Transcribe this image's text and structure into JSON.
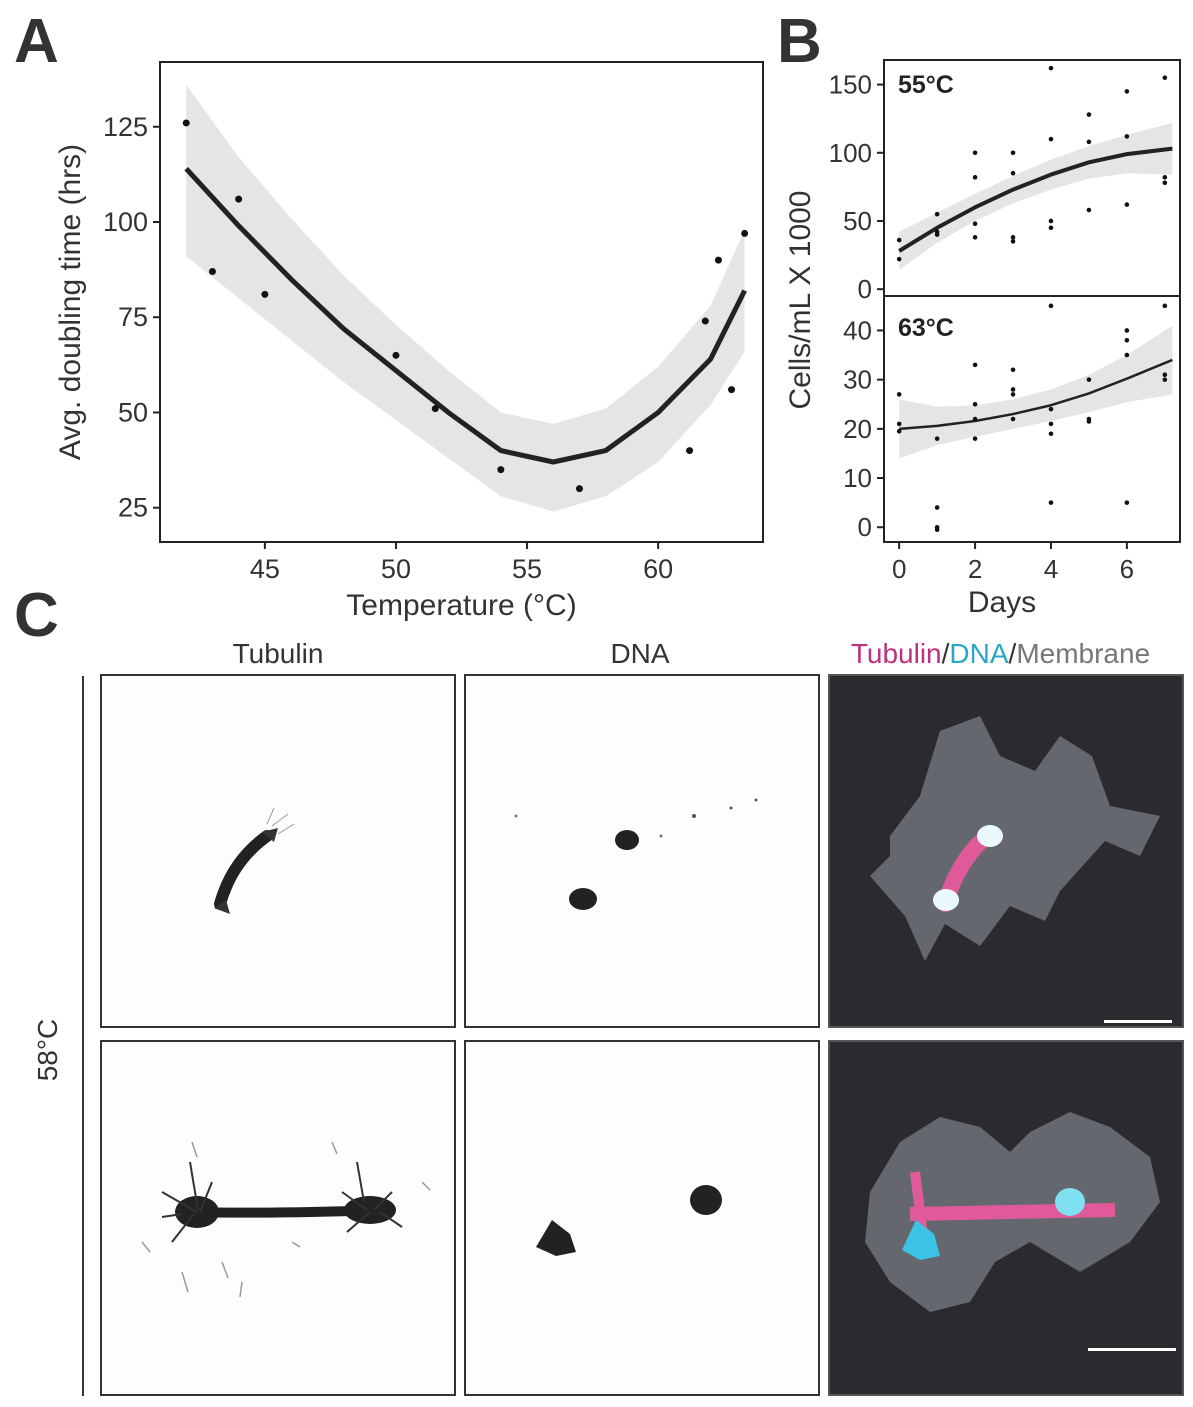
{
  "panels": {
    "a": "A",
    "b": "B",
    "c": "C"
  },
  "chart_data": [
    {
      "id": "A",
      "type": "scatter",
      "xlabel": "Temperature (°C)",
      "ylabel": "Avg. doubling time (hrs)",
      "xlim": [
        41,
        64
      ],
      "ylim": [
        16,
        142
      ],
      "xticks": [
        45,
        50,
        55,
        60
      ],
      "yticks": [
        25,
        50,
        75,
        100,
        125
      ],
      "points": [
        {
          "x": 42,
          "y": 126
        },
        {
          "x": 43,
          "y": 87
        },
        {
          "x": 44,
          "y": 106
        },
        {
          "x": 45,
          "y": 81
        },
        {
          "x": 50,
          "y": 65
        },
        {
          "x": 51.5,
          "y": 51
        },
        {
          "x": 54,
          "y": 35
        },
        {
          "x": 57,
          "y": 30
        },
        {
          "x": 61.2,
          "y": 40
        },
        {
          "x": 61.8,
          "y": 74
        },
        {
          "x": 62.3,
          "y": 90
        },
        {
          "x": 62.8,
          "y": 56
        },
        {
          "x": 63.3,
          "y": 97
        }
      ],
      "fit": [
        {
          "x": 42,
          "y": 114
        },
        {
          "x": 44,
          "y": 99
        },
        {
          "x": 46,
          "y": 85
        },
        {
          "x": 48,
          "y": 72
        },
        {
          "x": 50,
          "y": 61
        },
        {
          "x": 52,
          "y": 50
        },
        {
          "x": 54,
          "y": 40
        },
        {
          "x": 56,
          "y": 37
        },
        {
          "x": 58,
          "y": 40
        },
        {
          "x": 60,
          "y": 50
        },
        {
          "x": 62,
          "y": 64
        },
        {
          "x": 63.3,
          "y": 82
        }
      ],
      "band_upper": [
        {
          "x": 42,
          "y": 136
        },
        {
          "x": 44,
          "y": 117
        },
        {
          "x": 46,
          "y": 101
        },
        {
          "x": 48,
          "y": 86
        },
        {
          "x": 50,
          "y": 73
        },
        {
          "x": 52,
          "y": 61
        },
        {
          "x": 54,
          "y": 50
        },
        {
          "x": 56,
          "y": 47
        },
        {
          "x": 58,
          "y": 51
        },
        {
          "x": 60,
          "y": 62
        },
        {
          "x": 62,
          "y": 78
        },
        {
          "x": 63.3,
          "y": 98
        }
      ],
      "band_lower": [
        {
          "x": 42,
          "y": 91
        },
        {
          "x": 44,
          "y": 80
        },
        {
          "x": 46,
          "y": 69
        },
        {
          "x": 48,
          "y": 58
        },
        {
          "x": 50,
          "y": 48
        },
        {
          "x": 52,
          "y": 38
        },
        {
          "x": 54,
          "y": 28
        },
        {
          "x": 56,
          "y": 24
        },
        {
          "x": 58,
          "y": 28
        },
        {
          "x": 60,
          "y": 37
        },
        {
          "x": 62,
          "y": 52
        },
        {
          "x": 63.3,
          "y": 66
        }
      ]
    },
    {
      "id": "B-top",
      "type": "scatter",
      "label": "55°C",
      "xlim": [
        -0.4,
        7.4
      ],
      "ylim": [
        -5,
        168
      ],
      "yticks": [
        0,
        50,
        100,
        150
      ],
      "points": [
        {
          "x": 0,
          "y": 36
        },
        {
          "x": 0,
          "y": 22
        },
        {
          "x": 1,
          "y": 55
        },
        {
          "x": 1,
          "y": 42
        },
        {
          "x": 1,
          "y": 40
        },
        {
          "x": 2,
          "y": 100
        },
        {
          "x": 2,
          "y": 82
        },
        {
          "x": 2,
          "y": 48
        },
        {
          "x": 2,
          "y": 38
        },
        {
          "x": 3,
          "y": 100
        },
        {
          "x": 3,
          "y": 85
        },
        {
          "x": 3,
          "y": 38
        },
        {
          "x": 3,
          "y": 35
        },
        {
          "x": 4,
          "y": 162
        },
        {
          "x": 4,
          "y": 110
        },
        {
          "x": 4,
          "y": 50
        },
        {
          "x": 4,
          "y": 45
        },
        {
          "x": 5,
          "y": 128
        },
        {
          "x": 5,
          "y": 108
        },
        {
          "x": 5,
          "y": 58
        },
        {
          "x": 6,
          "y": 145
        },
        {
          "x": 6,
          "y": 112
        },
        {
          "x": 6,
          "y": 62
        },
        {
          "x": 7,
          "y": 155
        },
        {
          "x": 7,
          "y": 82
        },
        {
          "x": 7,
          "y": 78
        }
      ],
      "fit": [
        {
          "x": 0,
          "y": 28
        },
        {
          "x": 1,
          "y": 45
        },
        {
          "x": 2,
          "y": 60
        },
        {
          "x": 3,
          "y": 73
        },
        {
          "x": 4,
          "y": 84
        },
        {
          "x": 5,
          "y": 93
        },
        {
          "x": 6,
          "y": 99
        },
        {
          "x": 7.2,
          "y": 103
        }
      ],
      "band_upper": [
        {
          "x": 0,
          "y": 42
        },
        {
          "x": 1,
          "y": 56
        },
        {
          "x": 2,
          "y": 70
        },
        {
          "x": 3,
          "y": 83
        },
        {
          "x": 4,
          "y": 95
        },
        {
          "x": 5,
          "y": 105
        },
        {
          "x": 6,
          "y": 113
        },
        {
          "x": 7.2,
          "y": 122
        }
      ],
      "band_lower": [
        {
          "x": 0,
          "y": 14
        },
        {
          "x": 1,
          "y": 34
        },
        {
          "x": 2,
          "y": 50
        },
        {
          "x": 3,
          "y": 63
        },
        {
          "x": 4,
          "y": 73
        },
        {
          "x": 5,
          "y": 81
        },
        {
          "x": 6,
          "y": 85
        },
        {
          "x": 7.2,
          "y": 84
        }
      ]
    },
    {
      "id": "B-bottom",
      "type": "scatter",
      "label": "63°C",
      "xlim": [
        -0.4,
        7.4
      ],
      "ylim": [
        -3,
        47
      ],
      "xticks": [
        0,
        2,
        4,
        6
      ],
      "yticks": [
        0,
        10,
        20,
        30,
        40
      ],
      "xlabel": "Days",
      "points": [
        {
          "x": 0,
          "y": 27
        },
        {
          "x": 0,
          "y": 21
        },
        {
          "x": 0,
          "y": 19.5
        },
        {
          "x": 1,
          "y": 18
        },
        {
          "x": 1,
          "y": 4
        },
        {
          "x": 1,
          "y": 0
        },
        {
          "x": 1,
          "y": -0.5
        },
        {
          "x": 2,
          "y": 33
        },
        {
          "x": 2,
          "y": 25
        },
        {
          "x": 2,
          "y": 22
        },
        {
          "x": 2,
          "y": 18
        },
        {
          "x": 3,
          "y": 32
        },
        {
          "x": 3,
          "y": 28
        },
        {
          "x": 3,
          "y": 27
        },
        {
          "x": 3,
          "y": 22
        },
        {
          "x": 4,
          "y": 45
        },
        {
          "x": 4,
          "y": 24
        },
        {
          "x": 4,
          "y": 21
        },
        {
          "x": 4,
          "y": 19
        },
        {
          "x": 4,
          "y": 5
        },
        {
          "x": 5,
          "y": 30
        },
        {
          "x": 5,
          "y": 22
        },
        {
          "x": 5,
          "y": 21.5
        },
        {
          "x": 6,
          "y": 40
        },
        {
          "x": 6,
          "y": 38
        },
        {
          "x": 6,
          "y": 35
        },
        {
          "x": 6,
          "y": 5
        },
        {
          "x": 7,
          "y": 45
        },
        {
          "x": 7,
          "y": 31
        },
        {
          "x": 7,
          "y": 30
        }
      ],
      "fit": [
        {
          "x": 0,
          "y": 20
        },
        {
          "x": 1,
          "y": 20.6
        },
        {
          "x": 2,
          "y": 21.6
        },
        {
          "x": 3,
          "y": 23
        },
        {
          "x": 4,
          "y": 24.8
        },
        {
          "x": 5,
          "y": 27.2
        },
        {
          "x": 6,
          "y": 30.2
        },
        {
          "x": 7.2,
          "y": 34
        }
      ],
      "band_upper": [
        {
          "x": 0,
          "y": 26
        },
        {
          "x": 1,
          "y": 24.5
        },
        {
          "x": 2,
          "y": 24.8
        },
        {
          "x": 3,
          "y": 26
        },
        {
          "x": 4,
          "y": 28
        },
        {
          "x": 5,
          "y": 31
        },
        {
          "x": 6,
          "y": 35
        },
        {
          "x": 7.2,
          "y": 41
        }
      ],
      "band_lower": [
        {
          "x": 0,
          "y": 14
        },
        {
          "x": 1,
          "y": 16.7
        },
        {
          "x": 2,
          "y": 18.4
        },
        {
          "x": 3,
          "y": 20
        },
        {
          "x": 4,
          "y": 21.6
        },
        {
          "x": 5,
          "y": 23.4
        },
        {
          "x": 6,
          "y": 25.4
        },
        {
          "x": 7.2,
          "y": 27
        }
      ]
    }
  ],
  "panel_b": {
    "ylabel": "Cells/mL X 1000"
  },
  "panel_c": {
    "col_titles": {
      "tubulin": "Tubulin",
      "dna": "DNA",
      "merge_tubulin": "Tubulin",
      "sep1": "/",
      "merge_dna": "DNA",
      "sep2": "/",
      "merge_membrane": "Membrane"
    },
    "row_label": "58°C",
    "colors": {
      "tubulin": "#c0307f",
      "dna": "#2aa7c6",
      "membrane": "#666666"
    }
  }
}
